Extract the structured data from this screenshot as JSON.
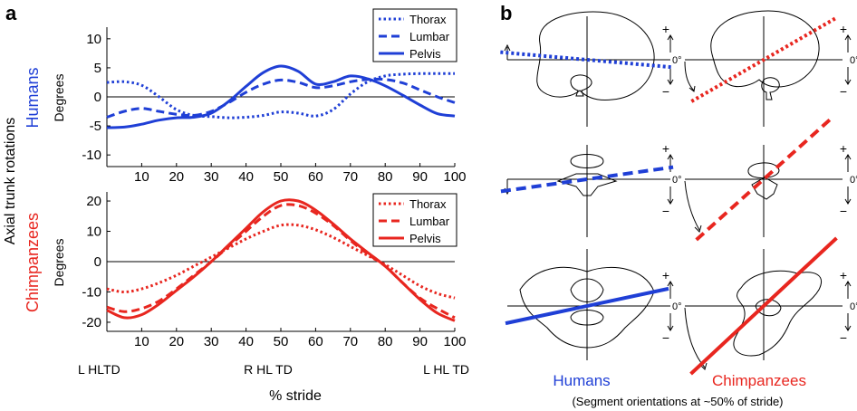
{
  "panel_labels": {
    "a": "a",
    "b": "b"
  },
  "y_axis_common_label": "Axial trunk rotations",
  "colors": {
    "humans": "#1f3fd6",
    "chimpanzees": "#e8261f",
    "ink": "#000000"
  },
  "x_axis": {
    "label": "% stride",
    "event_labels": {
      "left": "L HLTD",
      "middle": "R HL TD",
      "right": "L HL TD"
    }
  },
  "chart_data": [
    {
      "type": "line",
      "group_label": "Humans",
      "ylabel": "Degrees",
      "xlim": [
        0,
        100
      ],
      "ylim": [
        -12,
        12
      ],
      "x_ticks": [
        10,
        20,
        30,
        40,
        50,
        60,
        70,
        80,
        90,
        100
      ],
      "y_ticks": [
        -10,
        -5,
        0,
        5,
        10
      ],
      "legend_position": "top-right",
      "grid": false,
      "x": [
        0,
        5,
        10,
        15,
        20,
        25,
        30,
        35,
        40,
        45,
        50,
        55,
        60,
        65,
        70,
        75,
        80,
        85,
        90,
        95,
        100
      ],
      "series": [
        {
          "name": "Thorax",
          "style": "dotted",
          "values": [
            2.5,
            2.6,
            2,
            0,
            -2.2,
            -3.2,
            -3.4,
            -3.6,
            -3.5,
            -3.2,
            -2.6,
            -2.8,
            -3.3,
            -2.2,
            0.5,
            2.6,
            3.6,
            3.9,
            4,
            4,
            4
          ]
        },
        {
          "name": "Lumbar",
          "style": "dashed",
          "values": [
            -3.5,
            -2.5,
            -2,
            -2.5,
            -3,
            -3.2,
            -2.5,
            -1,
            0.8,
            2.2,
            2.9,
            2.5,
            1.6,
            1.9,
            2.6,
            3,
            3,
            2.4,
            1.2,
            0,
            -1
          ]
        },
        {
          "name": "Pelvis",
          "style": "solid",
          "values": [
            -5.3,
            -5.2,
            -4.7,
            -4,
            -3.6,
            -3.5,
            -2.8,
            -0.8,
            1.8,
            4.2,
            5.3,
            4.4,
            2.2,
            2.6,
            3.6,
            3.1,
            1.9,
            0.3,
            -1.4,
            -2.9,
            -3.3
          ]
        }
      ]
    },
    {
      "type": "line",
      "group_label": "Chimpanzees",
      "ylabel": "Degrees",
      "xlim": [
        0,
        100
      ],
      "ylim": [
        -23,
        23
      ],
      "x_ticks": [
        10,
        20,
        30,
        40,
        50,
        60,
        70,
        80,
        90,
        100
      ],
      "y_ticks": [
        -20,
        -10,
        0,
        10,
        20
      ],
      "legend_position": "top-right",
      "grid": false,
      "x": [
        0,
        5,
        10,
        15,
        20,
        25,
        30,
        35,
        40,
        45,
        50,
        55,
        60,
        65,
        70,
        75,
        80,
        85,
        90,
        95,
        100
      ],
      "series": [
        {
          "name": "Thorax",
          "style": "dotted",
          "values": [
            -9,
            -10,
            -9,
            -7,
            -4.5,
            -1.5,
            1.5,
            4.5,
            7.5,
            10,
            12,
            12,
            10.5,
            8,
            5,
            2,
            -1,
            -4.5,
            -8,
            -10.5,
            -12
          ]
        },
        {
          "name": "Lumbar",
          "style": "dashed",
          "values": [
            -15,
            -16.5,
            -15.5,
            -13,
            -9,
            -4.5,
            0,
            5,
            10,
            15,
            18.5,
            18.5,
            16,
            12,
            7,
            2.5,
            -1.5,
            -7,
            -12,
            -15.5,
            -18.5
          ]
        },
        {
          "name": "Pelvis",
          "style": "solid",
          "values": [
            -16,
            -18.5,
            -17.5,
            -14,
            -9.5,
            -5,
            0,
            5.5,
            11,
            16.5,
            20,
            20,
            17,
            12.5,
            7.5,
            3,
            -1.5,
            -7,
            -12.5,
            -17,
            -19.5
          ]
        }
      ]
    }
  ],
  "panel_b": {
    "species_labels": {
      "humans": "Humans",
      "chimpanzees": "Chimpanzees"
    },
    "caption": "(Segment orientations at ~50% of stride)",
    "scale": {
      "plus": "+",
      "zero": "0°",
      "minus": "−"
    },
    "segments": [
      {
        "row": "thorax",
        "species": "humans",
        "angle_deg": -5,
        "style": "dotted"
      },
      {
        "row": "thorax",
        "species": "chimpanzees",
        "angle_deg": 30,
        "style": "dotted"
      },
      {
        "row": "lumbar",
        "species": "humans",
        "angle_deg": 8,
        "style": "dashed"
      },
      {
        "row": "lumbar",
        "species": "chimpanzees",
        "angle_deg": 42,
        "style": "dashed"
      },
      {
        "row": "pelvis",
        "species": "humans",
        "angle_deg": 12,
        "style": "solid"
      },
      {
        "row": "pelvis",
        "species": "chimpanzees",
        "angle_deg": 43,
        "style": "solid"
      }
    ]
  }
}
